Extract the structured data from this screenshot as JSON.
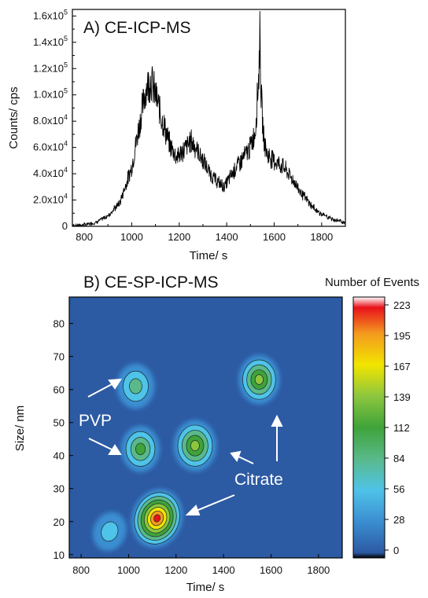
{
  "chart_data": [
    {
      "type": "line",
      "title": "A) CE-ICP-MS",
      "xlabel": "Time/ s",
      "ylabel": "Counts/ cps",
      "xlim": [
        750,
        1900
      ],
      "ylim": [
        0,
        165000
      ],
      "x_ticks": [
        800,
        1000,
        1200,
        1400,
        1600,
        1800
      ],
      "y_ticks": [
        {
          "value": 0,
          "mantissa": "0",
          "exp": ""
        },
        {
          "value": 20000,
          "mantissa": "2.0x10",
          "exp": "4"
        },
        {
          "value": 40000,
          "mantissa": "4.0x10",
          "exp": "4"
        },
        {
          "value": 60000,
          "mantissa": "6.0x10",
          "exp": "4"
        },
        {
          "value": 80000,
          "mantissa": "8.0x10",
          "exp": "4"
        },
        {
          "value": 100000,
          "mantissa": "1.0x10",
          "exp": "5"
        },
        {
          "value": 120000,
          "mantissa": "1.2x10",
          "exp": "5"
        },
        {
          "value": 140000,
          "mantissa": "1.4x10",
          "exp": "5"
        },
        {
          "value": 160000,
          "mantissa": "1.6x10",
          "exp": "5"
        }
      ],
      "x": [
        750,
        800,
        850,
        900,
        950,
        1000,
        1030,
        1060,
        1080,
        1100,
        1130,
        1160,
        1190,
        1220,
        1250,
        1270,
        1300,
        1330,
        1360,
        1390,
        1410,
        1440,
        1470,
        1500,
        1520,
        1535,
        1540,
        1545,
        1555,
        1570,
        1600,
        1640,
        1680,
        1720,
        1760,
        1800,
        1850,
        1900
      ],
      "values": [
        500,
        1000,
        3000,
        8000,
        18000,
        45000,
        75000,
        105000,
        112000,
        100000,
        80000,
        62000,
        53000,
        58000,
        65000,
        60000,
        50000,
        40000,
        34000,
        30000,
        36000,
        45000,
        52000,
        60000,
        72000,
        115000,
        148000,
        100000,
        68000,
        55000,
        50000,
        45000,
        35000,
        24000,
        15000,
        9000,
        5000,
        3000
      ]
    },
    {
      "type": "heatmap",
      "title": "B) CE-SP-ICP-MS",
      "xlabel": "Time/ s",
      "ylabel": "Size/ nm",
      "xlim": [
        750,
        1900
      ],
      "ylim": [
        9,
        88
      ],
      "x_ticks": [
        800,
        1000,
        1200,
        1400,
        1600,
        1800
      ],
      "y_ticks": [
        10,
        20,
        30,
        40,
        50,
        60,
        70,
        80
      ],
      "clusters": [
        {
          "time": 1120,
          "size": 21,
          "peak": 223
        },
        {
          "time": 1280,
          "size": 43,
          "peak": 150
        },
        {
          "time": 1050,
          "size": 42,
          "peak": 105
        },
        {
          "time": 1030,
          "size": 61,
          "peak": 95
        },
        {
          "time": 1550,
          "size": 63,
          "peak": 130
        },
        {
          "time": 920,
          "size": 17,
          "peak": 45
        }
      ],
      "colorbar": {
        "title": "Number of Events",
        "ticks": [
          223,
          195,
          167,
          139,
          112,
          84,
          56,
          28,
          0
        ]
      },
      "annotations": [
        "PVP",
        "Citrate"
      ],
      "colors": {
        "background": "#2c5aa3",
        "max": "#e8121b",
        "min": "#000000"
      }
    }
  ]
}
